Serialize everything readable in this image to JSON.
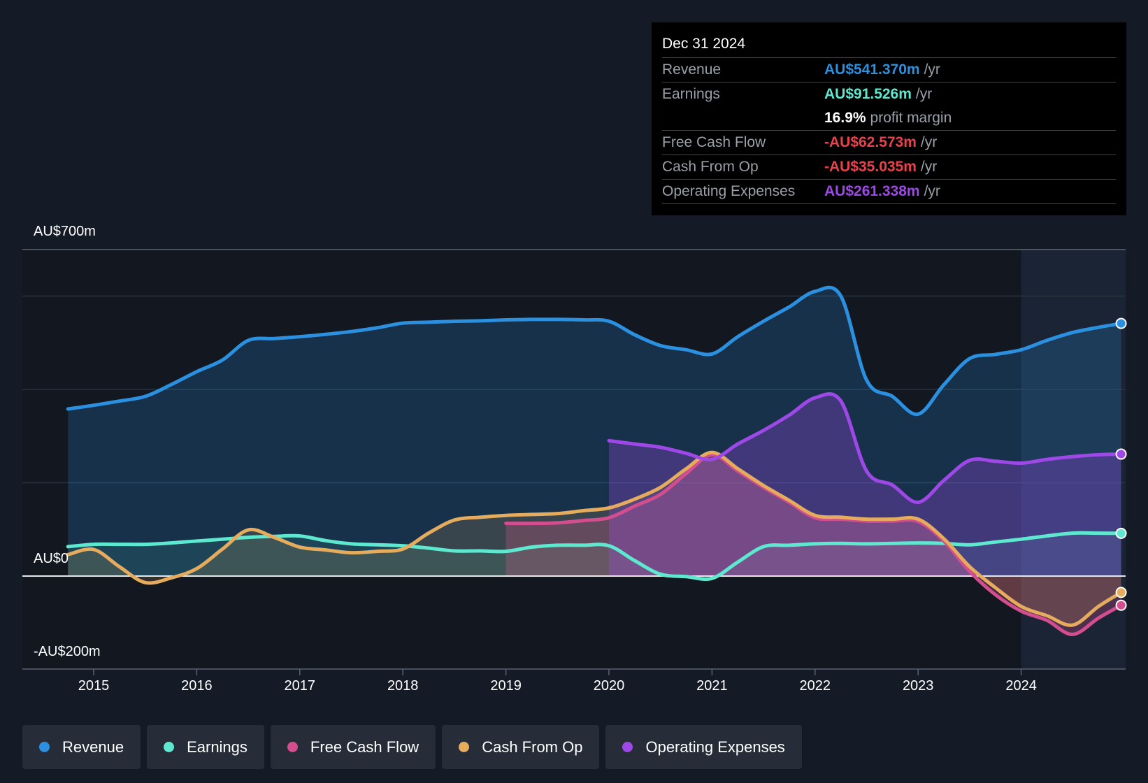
{
  "chart_data": {
    "type": "area",
    "currency": "AU$",
    "ylim": [
      -200,
      700
    ],
    "y_tick_labels": [
      "AU$700m",
      "AU$0",
      "-AU$200m"
    ],
    "x_tick_labels": [
      "2015",
      "2016",
      "2017",
      "2018",
      "2019",
      "2020",
      "2021",
      "2022",
      "2023",
      "2024"
    ],
    "series": [
      {
        "name": "Revenue",
        "color": "#2b90e0",
        "fill": "rgba(43,144,224,0.22)",
        "points": [
          [
            2014.75,
            358
          ],
          [
            2015.0,
            366
          ],
          [
            2015.25,
            375
          ],
          [
            2015.5,
            385
          ],
          [
            2015.75,
            410
          ],
          [
            2016.0,
            438
          ],
          [
            2016.25,
            463
          ],
          [
            2016.5,
            505
          ],
          [
            2016.75,
            509
          ],
          [
            2017.0,
            513
          ],
          [
            2017.25,
            518
          ],
          [
            2017.5,
            524
          ],
          [
            2017.75,
            532
          ],
          [
            2018.0,
            542
          ],
          [
            2018.25,
            544
          ],
          [
            2018.5,
            546
          ],
          [
            2018.75,
            547
          ],
          [
            2019.0,
            549
          ],
          [
            2019.25,
            550
          ],
          [
            2019.5,
            550
          ],
          [
            2019.75,
            549
          ],
          [
            2020.0,
            546
          ],
          [
            2020.25,
            517
          ],
          [
            2020.5,
            494
          ],
          [
            2020.75,
            485
          ],
          [
            2021.0,
            476
          ],
          [
            2021.25,
            513
          ],
          [
            2021.5,
            546
          ],
          [
            2021.75,
            577
          ],
          [
            2022.0,
            610
          ],
          [
            2022.25,
            600
          ],
          [
            2022.5,
            420
          ],
          [
            2022.75,
            385
          ],
          [
            2023.0,
            347
          ],
          [
            2023.25,
            410
          ],
          [
            2023.5,
            466
          ],
          [
            2023.75,
            475
          ],
          [
            2024.0,
            485
          ],
          [
            2024.25,
            505
          ],
          [
            2024.5,
            522
          ],
          [
            2024.75,
            533
          ],
          [
            2024.97,
            541.37
          ]
        ]
      },
      {
        "name": "Earnings",
        "color": "#5ee8cf",
        "fill": "rgba(94,232,207,0.10)",
        "points": [
          [
            2014.75,
            63
          ],
          [
            2015.0,
            68
          ],
          [
            2015.25,
            68
          ],
          [
            2015.5,
            68
          ],
          [
            2015.75,
            71
          ],
          [
            2016.0,
            75
          ],
          [
            2016.25,
            79
          ],
          [
            2016.5,
            83
          ],
          [
            2016.75,
            85
          ],
          [
            2017.0,
            86
          ],
          [
            2017.25,
            76
          ],
          [
            2017.5,
            69
          ],
          [
            2017.75,
            67
          ],
          [
            2018.0,
            65
          ],
          [
            2018.25,
            60
          ],
          [
            2018.5,
            54
          ],
          [
            2018.75,
            54
          ],
          [
            2019.0,
            53
          ],
          [
            2019.25,
            62
          ],
          [
            2019.5,
            66
          ],
          [
            2019.75,
            66
          ],
          [
            2020.0,
            65
          ],
          [
            2020.25,
            33
          ],
          [
            2020.5,
            4
          ],
          [
            2020.75,
            -1
          ],
          [
            2021.0,
            -5
          ],
          [
            2021.25,
            30
          ],
          [
            2021.5,
            63
          ],
          [
            2021.75,
            66
          ],
          [
            2022.0,
            69
          ],
          [
            2022.25,
            70
          ],
          [
            2022.5,
            69
          ],
          [
            2022.75,
            70
          ],
          [
            2023.0,
            71
          ],
          [
            2023.25,
            70
          ],
          [
            2023.5,
            67
          ],
          [
            2023.75,
            73
          ],
          [
            2024.0,
            79
          ],
          [
            2024.25,
            86
          ],
          [
            2024.5,
            92
          ],
          [
            2024.75,
            92
          ],
          [
            2024.97,
            91.53
          ]
        ]
      },
      {
        "name": "Free Cash Flow",
        "color": "#d24e8e",
        "fill": "rgba(210,78,142,0.28)",
        "points": [
          [
            2019.0,
            113
          ],
          [
            2019.25,
            113
          ],
          [
            2019.5,
            114
          ],
          [
            2019.75,
            119
          ],
          [
            2020.0,
            125
          ],
          [
            2020.25,
            150
          ],
          [
            2020.5,
            175
          ],
          [
            2020.75,
            220
          ],
          [
            2021.0,
            260
          ],
          [
            2021.25,
            225
          ],
          [
            2021.5,
            190
          ],
          [
            2021.75,
            158
          ],
          [
            2022.0,
            125
          ],
          [
            2022.25,
            122
          ],
          [
            2022.5,
            118
          ],
          [
            2022.75,
            118
          ],
          [
            2023.0,
            117
          ],
          [
            2023.25,
            75
          ],
          [
            2023.5,
            10
          ],
          [
            2023.75,
            -40
          ],
          [
            2024.0,
            -75
          ],
          [
            2024.25,
            -95
          ],
          [
            2024.5,
            -125
          ],
          [
            2024.75,
            -90
          ],
          [
            2024.97,
            -62.57
          ]
        ]
      },
      {
        "name": "Cash From Op",
        "color": "#e6ac5e",
        "fill": "rgba(230,172,94,0.16)",
        "points": [
          [
            2014.75,
            46
          ],
          [
            2015.0,
            57
          ],
          [
            2015.25,
            20
          ],
          [
            2015.5,
            -14
          ],
          [
            2015.75,
            -4
          ],
          [
            2016.0,
            16
          ],
          [
            2016.25,
            58
          ],
          [
            2016.5,
            99
          ],
          [
            2016.75,
            83
          ],
          [
            2017.0,
            62
          ],
          [
            2017.25,
            56
          ],
          [
            2017.5,
            50
          ],
          [
            2017.75,
            53
          ],
          [
            2018.0,
            58
          ],
          [
            2018.25,
            92
          ],
          [
            2018.5,
            120
          ],
          [
            2018.75,
            126
          ],
          [
            2019.0,
            130
          ],
          [
            2019.25,
            132
          ],
          [
            2019.5,
            134
          ],
          [
            2019.75,
            140
          ],
          [
            2020.0,
            146
          ],
          [
            2020.25,
            165
          ],
          [
            2020.5,
            190
          ],
          [
            2020.75,
            230
          ],
          [
            2021.0,
            265
          ],
          [
            2021.25,
            230
          ],
          [
            2021.5,
            194
          ],
          [
            2021.75,
            162
          ],
          [
            2022.0,
            130
          ],
          [
            2022.25,
            126
          ],
          [
            2022.5,
            122
          ],
          [
            2022.75,
            122
          ],
          [
            2023.0,
            122
          ],
          [
            2023.25,
            80
          ],
          [
            2023.5,
            20
          ],
          [
            2023.75,
            -25
          ],
          [
            2024.0,
            -65
          ],
          [
            2024.25,
            -85
          ],
          [
            2024.5,
            -105
          ],
          [
            2024.75,
            -65
          ],
          [
            2024.97,
            -35.04
          ]
        ]
      },
      {
        "name": "Operating Expenses",
        "color": "#9e48e8",
        "fill": "rgba(158,72,232,0.30)",
        "points": [
          [
            2020.0,
            290
          ],
          [
            2020.25,
            283
          ],
          [
            2020.5,
            276
          ],
          [
            2020.75,
            263
          ],
          [
            2021.0,
            250
          ],
          [
            2021.25,
            283
          ],
          [
            2021.5,
            312
          ],
          [
            2021.75,
            345
          ],
          [
            2022.0,
            382
          ],
          [
            2022.25,
            375
          ],
          [
            2022.5,
            225
          ],
          [
            2022.75,
            195
          ],
          [
            2023.0,
            158
          ],
          [
            2023.25,
            205
          ],
          [
            2023.5,
            248
          ],
          [
            2023.75,
            246
          ],
          [
            2024.0,
            242
          ],
          [
            2024.25,
            250
          ],
          [
            2024.5,
            256
          ],
          [
            2024.75,
            260
          ],
          [
            2024.97,
            261.34
          ]
        ]
      }
    ],
    "tooltip": {
      "date": "Dec 31 2024",
      "rows": [
        {
          "label": "Revenue",
          "value": "AU$541.370m",
          "unit": "/yr",
          "color": "#2b90e0"
        },
        {
          "label": "Earnings",
          "value": "AU$91.526m",
          "unit": "/yr",
          "color": "#5ee8cf"
        },
        {
          "label": "",
          "value": "16.9%",
          "unit": "profit margin",
          "color": "#ffffff"
        },
        {
          "label": "Free Cash Flow",
          "value": "-AU$62.573m",
          "unit": "/yr",
          "color": "#e8424e"
        },
        {
          "label": "Cash From Op",
          "value": "-AU$35.035m",
          "unit": "/yr",
          "color": "#e8424e"
        },
        {
          "label": "Operating Expenses",
          "value": "AU$261.338m",
          "unit": "/yr",
          "color": "#9e48e8"
        }
      ]
    },
    "legend": [
      {
        "label": "Revenue",
        "color": "#2b90e0"
      },
      {
        "label": "Earnings",
        "color": "#5ee8cf"
      },
      {
        "label": "Free Cash Flow",
        "color": "#d24e8e"
      },
      {
        "label": "Cash From Op",
        "color": "#e6ac5e"
      },
      {
        "label": "Operating Expenses",
        "color": "#9e48e8"
      }
    ]
  }
}
